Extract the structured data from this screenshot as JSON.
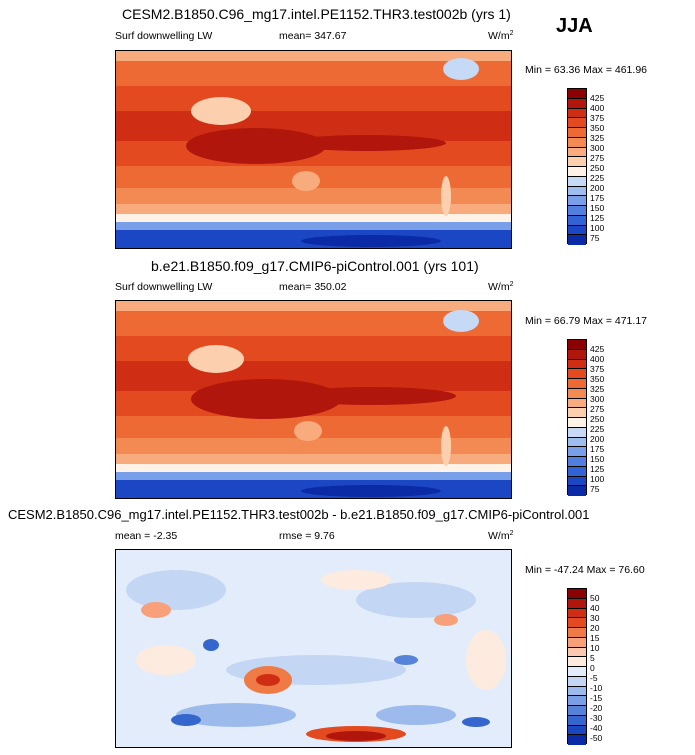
{
  "season": "JJA",
  "panels": [
    {
      "title": "CESM2.B1850.C96_mg17.intel.PE1152.THR3.test002b (yrs 1)",
      "variable": "Surf downwelling LW",
      "mean_text": "mean= 347.67",
      "units": "W/m",
      "units_sup": "2",
      "minmax": "Min = 63.36 Max = 461.96"
    },
    {
      "title": "b.e21.B1850.f09_g17.CMIP6-piControl.001 (yrs 101)",
      "variable": "Surf downwelling LW",
      "mean_text": "mean= 350.02",
      "units": "W/m",
      "units_sup": "2",
      "minmax": "Min = 66.79 Max = 471.17"
    },
    {
      "title": "CESM2.B1850.C96_mg17.intel.PE1152.THR3.test002b - b.e21.B1850.f09_g17.CMIP6-piControl.001",
      "mean_text": "mean = -2.35",
      "rmse_text": "rmse = 9.76",
      "units": "W/m",
      "units_sup": "2",
      "minmax": "Min = -47.24 Max = 76.60"
    }
  ],
  "abs_colorbar": {
    "labels": [
      "425",
      "400",
      "375",
      "350",
      "325",
      "300",
      "275",
      "250",
      "225",
      "200",
      "175",
      "150",
      "125",
      "100",
      "75"
    ],
    "colors": [
      "#8b0000",
      "#b0160c",
      "#cf2e14",
      "#e34a1f",
      "#ee6a35",
      "#f48a53",
      "#f8ab7c",
      "#fccfae",
      "#fff2e6",
      "#c6d9f5",
      "#9fbef0",
      "#789fe8",
      "#527fdf",
      "#3163d5",
      "#1b47c4",
      "#0a2aa6"
    ]
  },
  "diff_colorbar": {
    "labels": [
      "50",
      "40",
      "30",
      "20",
      "15",
      "10",
      "5",
      "0",
      "-5",
      "-10",
      "-15",
      "-20",
      "-30",
      "-40",
      "-50"
    ],
    "colors": [
      "#8b0000",
      "#b0160c",
      "#cf2e14",
      "#e34a1f",
      "#f07a45",
      "#f7a07a",
      "#fbc7ae",
      "#fdebe0",
      "#e3ecfb",
      "#c3d6f4",
      "#9cbbec",
      "#7a9fe4",
      "#5782d9",
      "#3566cd",
      "#1b47c0",
      "#0a2aa6"
    ]
  }
}
